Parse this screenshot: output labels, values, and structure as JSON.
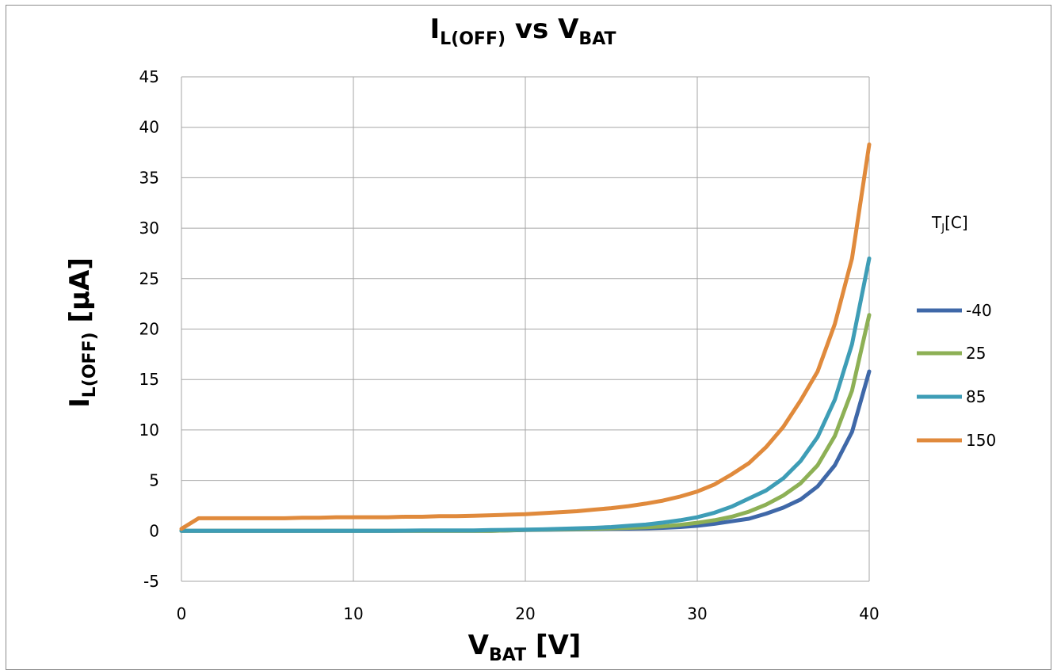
{
  "chart_data": {
    "type": "line",
    "title": {
      "main": "I",
      "sub": "L(OFF)",
      "mid": " vs V",
      "sub2": "BAT"
    },
    "xlabel": {
      "main": "V",
      "sub": "BAT",
      "rest": " [V]"
    },
    "ylabel": {
      "main": "I",
      "sub": "L(OFF)",
      "rest": " [µA]"
    },
    "xlim": [
      0,
      40
    ],
    "ylim": [
      -5,
      45
    ],
    "xticks": [
      0,
      10,
      20,
      30,
      40
    ],
    "yticks": [
      -5,
      0,
      5,
      10,
      15,
      20,
      25,
      30,
      35,
      40,
      45
    ],
    "grid": true,
    "legend": {
      "position": "right",
      "title_main": "T",
      "title_sub": "J",
      "title_rest": "[C]"
    },
    "x": [
      0,
      1,
      2,
      3,
      4,
      5,
      6,
      7,
      8,
      9,
      10,
      11,
      12,
      13,
      14,
      15,
      16,
      17,
      18,
      19,
      20,
      21,
      22,
      23,
      24,
      25,
      26,
      27,
      28,
      29,
      30,
      31,
      32,
      33,
      34,
      35,
      36,
      37,
      38,
      39,
      40
    ],
    "series": [
      {
        "name": "-40",
        "color": "#3F68A8",
        "values": [
          0,
          0,
          0,
          0,
          0,
          0,
          0,
          0,
          0,
          0,
          0,
          0,
          0,
          0,
          0,
          0,
          0,
          0,
          0,
          0.05,
          0.08,
          0.1,
          0.12,
          0.14,
          0.16,
          0.2,
          0.22,
          0.25,
          0.3,
          0.38,
          0.5,
          0.7,
          0.95,
          1.2,
          1.7,
          2.3,
          3.1,
          4.4,
          6.5,
          9.8,
          15.8
        ]
      },
      {
        "name": "25",
        "color": "#8DB055",
        "values": [
          0,
          0,
          0,
          0,
          0,
          0,
          0,
          0,
          0,
          0,
          0,
          0,
          0,
          0,
          0,
          0,
          0,
          0,
          0,
          0.05,
          0.1,
          0.12,
          0.15,
          0.18,
          0.2,
          0.25,
          0.3,
          0.35,
          0.45,
          0.6,
          0.8,
          1.05,
          1.4,
          1.9,
          2.6,
          3.5,
          4.7,
          6.5,
          9.4,
          13.9,
          21.4
        ]
      },
      {
        "name": "85",
        "color": "#3E9DB6",
        "values": [
          0,
          0,
          0,
          0,
          0,
          0,
          0,
          0,
          0,
          0,
          0,
          0,
          0,
          0.02,
          0.05,
          0.05,
          0.05,
          0.05,
          0.08,
          0.1,
          0.12,
          0.15,
          0.2,
          0.25,
          0.3,
          0.38,
          0.5,
          0.62,
          0.82,
          1.05,
          1.35,
          1.8,
          2.4,
          3.2,
          4.0,
          5.2,
          6.9,
          9.3,
          13.0,
          18.5,
          27.0
        ]
      },
      {
        "name": "150",
        "color": "#E08A3C",
        "values": [
          0.2,
          1.25,
          1.25,
          1.25,
          1.25,
          1.25,
          1.25,
          1.3,
          1.3,
          1.35,
          1.35,
          1.35,
          1.35,
          1.4,
          1.4,
          1.45,
          1.45,
          1.5,
          1.55,
          1.6,
          1.65,
          1.75,
          1.85,
          1.95,
          2.1,
          2.25,
          2.45,
          2.7,
          3.0,
          3.4,
          3.9,
          4.6,
          5.6,
          6.7,
          8.3,
          10.3,
          12.9,
          15.8,
          20.5,
          27.0,
          38.3
        ]
      }
    ]
  }
}
